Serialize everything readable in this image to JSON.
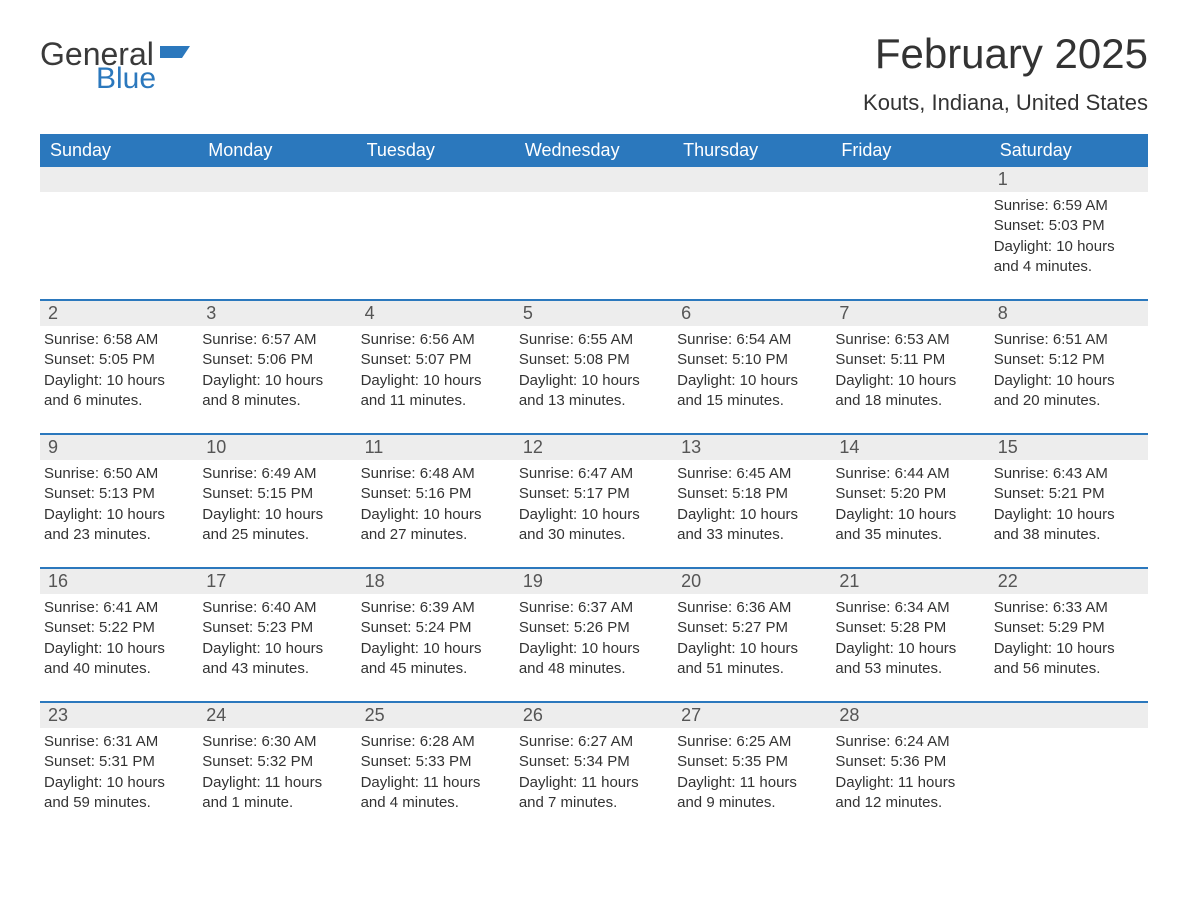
{
  "brand": {
    "word1": "General",
    "word2": "Blue",
    "accent_color": "#2b78bd"
  },
  "title": "February 2025",
  "location": "Kouts, Indiana, United States",
  "colors": {
    "header_bg": "#2b78bd",
    "header_text": "#ffffff",
    "daynum_bg": "#ededed",
    "week_border": "#2b78bd",
    "body_text": "#333333"
  },
  "day_names": [
    "Sunday",
    "Monday",
    "Tuesday",
    "Wednesday",
    "Thursday",
    "Friday",
    "Saturday"
  ],
  "labels": {
    "sunrise": "Sunrise: ",
    "sunset": "Sunset: ",
    "daylight": "Daylight: "
  },
  "weeks": [
    [
      null,
      null,
      null,
      null,
      null,
      null,
      {
        "n": "1",
        "sunrise": "6:59 AM",
        "sunset": "5:03 PM",
        "daylight": "10 hours and 4 minutes."
      }
    ],
    [
      {
        "n": "2",
        "sunrise": "6:58 AM",
        "sunset": "5:05 PM",
        "daylight": "10 hours and 6 minutes."
      },
      {
        "n": "3",
        "sunrise": "6:57 AM",
        "sunset": "5:06 PM",
        "daylight": "10 hours and 8 minutes."
      },
      {
        "n": "4",
        "sunrise": "6:56 AM",
        "sunset": "5:07 PM",
        "daylight": "10 hours and 11 minutes."
      },
      {
        "n": "5",
        "sunrise": "6:55 AM",
        "sunset": "5:08 PM",
        "daylight": "10 hours and 13 minutes."
      },
      {
        "n": "6",
        "sunrise": "6:54 AM",
        "sunset": "5:10 PM",
        "daylight": "10 hours and 15 minutes."
      },
      {
        "n": "7",
        "sunrise": "6:53 AM",
        "sunset": "5:11 PM",
        "daylight": "10 hours and 18 minutes."
      },
      {
        "n": "8",
        "sunrise": "6:51 AM",
        "sunset": "5:12 PM",
        "daylight": "10 hours and 20 minutes."
      }
    ],
    [
      {
        "n": "9",
        "sunrise": "6:50 AM",
        "sunset": "5:13 PM",
        "daylight": "10 hours and 23 minutes."
      },
      {
        "n": "10",
        "sunrise": "6:49 AM",
        "sunset": "5:15 PM",
        "daylight": "10 hours and 25 minutes."
      },
      {
        "n": "11",
        "sunrise": "6:48 AM",
        "sunset": "5:16 PM",
        "daylight": "10 hours and 27 minutes."
      },
      {
        "n": "12",
        "sunrise": "6:47 AM",
        "sunset": "5:17 PM",
        "daylight": "10 hours and 30 minutes."
      },
      {
        "n": "13",
        "sunrise": "6:45 AM",
        "sunset": "5:18 PM",
        "daylight": "10 hours and 33 minutes."
      },
      {
        "n": "14",
        "sunrise": "6:44 AM",
        "sunset": "5:20 PM",
        "daylight": "10 hours and 35 minutes."
      },
      {
        "n": "15",
        "sunrise": "6:43 AM",
        "sunset": "5:21 PM",
        "daylight": "10 hours and 38 minutes."
      }
    ],
    [
      {
        "n": "16",
        "sunrise": "6:41 AM",
        "sunset": "5:22 PM",
        "daylight": "10 hours and 40 minutes."
      },
      {
        "n": "17",
        "sunrise": "6:40 AM",
        "sunset": "5:23 PM",
        "daylight": "10 hours and 43 minutes."
      },
      {
        "n": "18",
        "sunrise": "6:39 AM",
        "sunset": "5:24 PM",
        "daylight": "10 hours and 45 minutes."
      },
      {
        "n": "19",
        "sunrise": "6:37 AM",
        "sunset": "5:26 PM",
        "daylight": "10 hours and 48 minutes."
      },
      {
        "n": "20",
        "sunrise": "6:36 AM",
        "sunset": "5:27 PM",
        "daylight": "10 hours and 51 minutes."
      },
      {
        "n": "21",
        "sunrise": "6:34 AM",
        "sunset": "5:28 PM",
        "daylight": "10 hours and 53 minutes."
      },
      {
        "n": "22",
        "sunrise": "6:33 AM",
        "sunset": "5:29 PM",
        "daylight": "10 hours and 56 minutes."
      }
    ],
    [
      {
        "n": "23",
        "sunrise": "6:31 AM",
        "sunset": "5:31 PM",
        "daylight": "10 hours and 59 minutes."
      },
      {
        "n": "24",
        "sunrise": "6:30 AM",
        "sunset": "5:32 PM",
        "daylight": "11 hours and 1 minute."
      },
      {
        "n": "25",
        "sunrise": "6:28 AM",
        "sunset": "5:33 PM",
        "daylight": "11 hours and 4 minutes."
      },
      {
        "n": "26",
        "sunrise": "6:27 AM",
        "sunset": "5:34 PM",
        "daylight": "11 hours and 7 minutes."
      },
      {
        "n": "27",
        "sunrise": "6:25 AM",
        "sunset": "5:35 PM",
        "daylight": "11 hours and 9 minutes."
      },
      {
        "n": "28",
        "sunrise": "6:24 AM",
        "sunset": "5:36 PM",
        "daylight": "11 hours and 12 minutes."
      },
      null
    ]
  ]
}
